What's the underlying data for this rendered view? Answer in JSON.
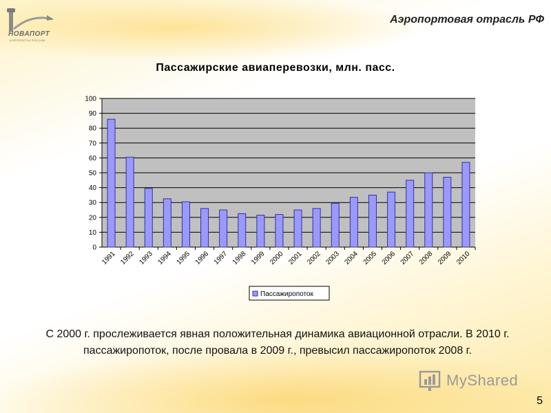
{
  "header": {
    "title": "Аэропортовая отрасль РФ"
  },
  "logo": {
    "text": "НОВАПОРТ",
    "subtitle": "АЭРОПОРТЫ РОССИИ"
  },
  "chart_data": {
    "type": "bar",
    "title": "Пассажирские авиаперевозки, млн. пасс.",
    "categories": [
      "1991",
      "1992",
      "1993",
      "1994",
      "1995",
      "1996",
      "1997",
      "1998",
      "1999",
      "2000",
      "2001",
      "2002",
      "2003",
      "2004",
      "2005",
      "2006",
      "2007",
      "2008",
      "2009",
      "2010"
    ],
    "series": [
      {
        "name": "Пассажиропоток",
        "values": [
          86,
          60.5,
          39.5,
          32.5,
          30.5,
          26,
          25,
          22.5,
          21.5,
          22,
          25,
          26,
          29.5,
          33.5,
          35,
          37,
          45,
          50,
          47,
          57
        ]
      }
    ],
    "ylim": [
      0,
      100
    ],
    "yticks": [
      0,
      10,
      20,
      30,
      40,
      50,
      60,
      70,
      80,
      90,
      100
    ],
    "grid": true,
    "legend": "bottom",
    "colors": {
      "bar": "#9999ff",
      "bar_stroke": "#333399",
      "plot_bg": "#c0c0c0",
      "grid": "#000000"
    }
  },
  "description": "С 2000 г. прослеживается явная положительная динамика авиационной отрасли. В 2010 г. пассажиропоток, после провала в 2009 г., превысил пассажиропоток 2008 г.",
  "watermark": {
    "text": "MyShared"
  },
  "page_number": "5"
}
